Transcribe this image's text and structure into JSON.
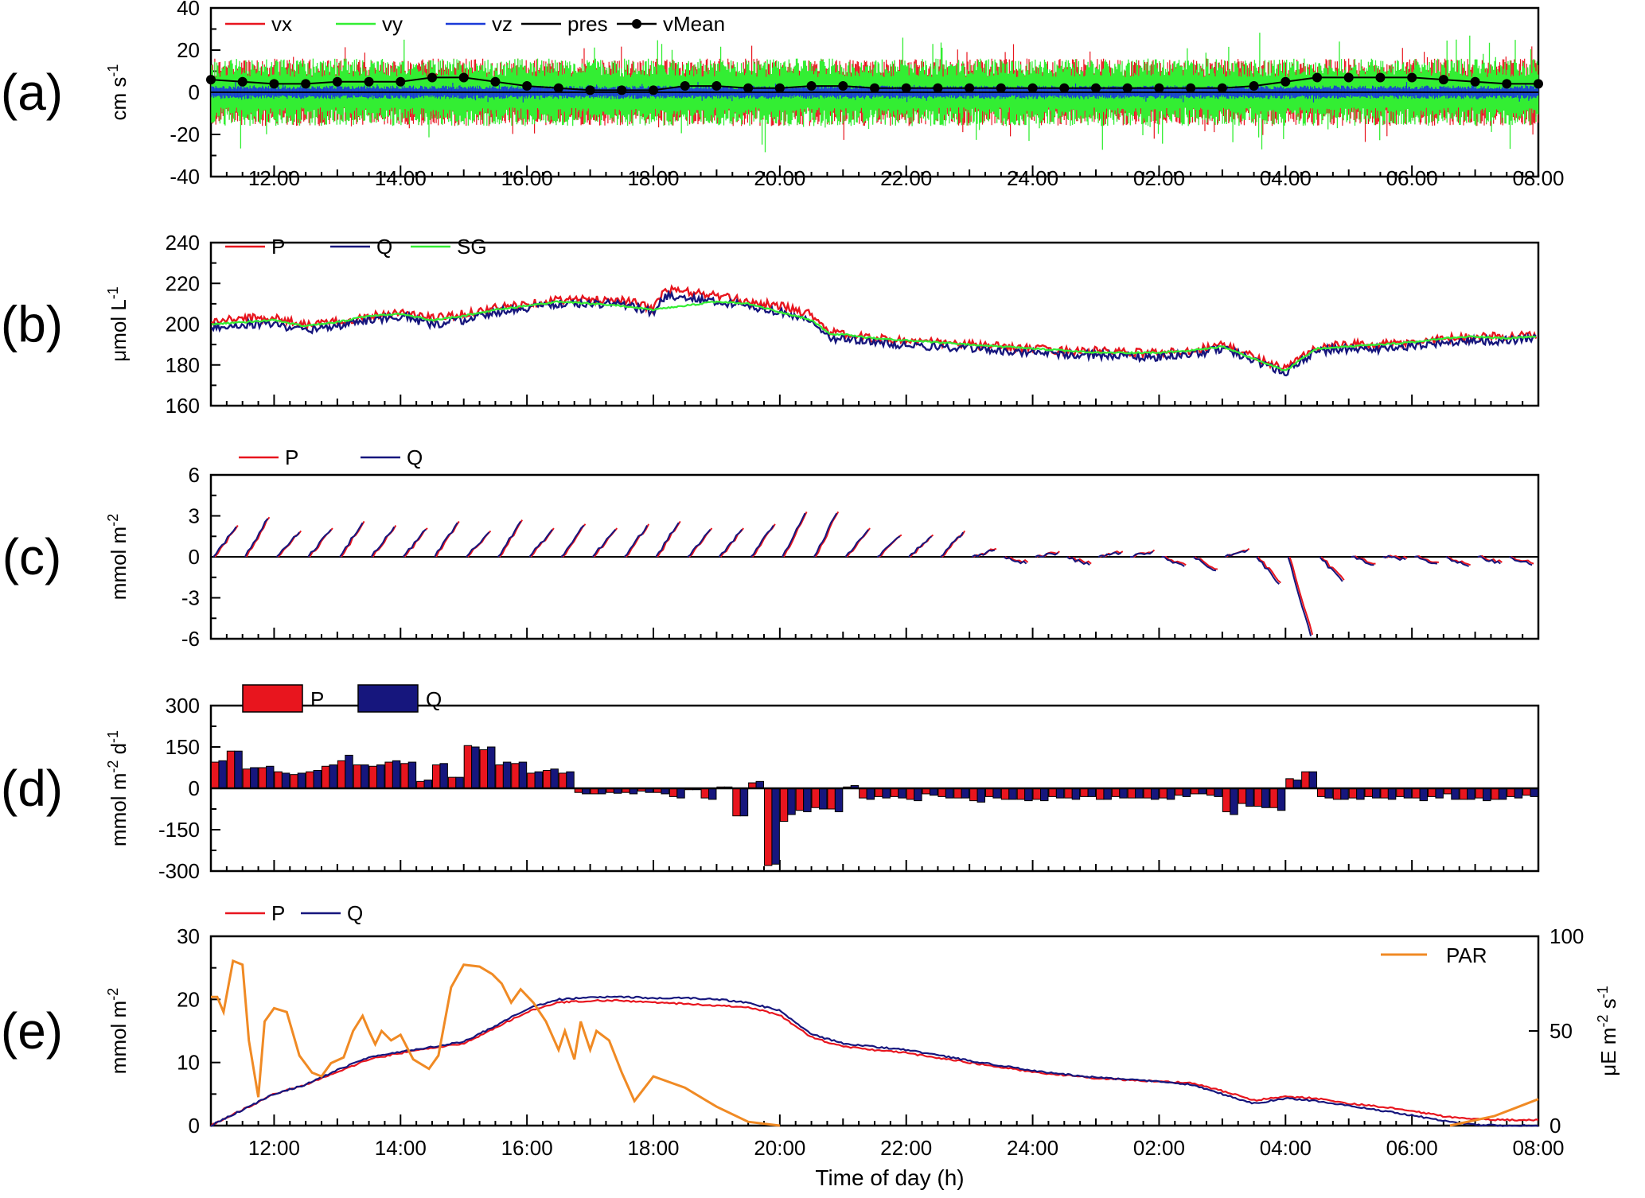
{
  "x_axis": {
    "title": "Time of day (h)",
    "ticks": [
      "12:00",
      "14:00",
      "16:00",
      "18:00",
      "20:00",
      "22:00",
      "24:00",
      "02:00",
      "04:00",
      "06:00",
      "08:00"
    ],
    "range_hours": [
      11,
      32
    ]
  },
  "panels": [
    {
      "label": "(a)",
      "ylabel": "cm s",
      "ylabel_sup": "-1",
      "yticks": [
        "40",
        "20",
        "0",
        "-20",
        "-40"
      ],
      "legend": [
        "vx",
        "vy",
        "vz",
        "pres",
        "vMean"
      ]
    },
    {
      "label": "(b)",
      "ylabel": "μmol L",
      "ylabel_sup": "-1",
      "yticks": [
        "240",
        "220",
        "200",
        "180",
        "160"
      ],
      "legend": [
        "P",
        "Q",
        "SG"
      ]
    },
    {
      "label": "(c)",
      "ylabel": "mmol m",
      "ylabel_sup": "-2",
      "yticks": [
        "6",
        "3",
        "0",
        "-3",
        "-6"
      ],
      "legend": [
        "P",
        "Q"
      ]
    },
    {
      "label": "(d)",
      "ylabel": "mmol m",
      "ylabel_sup": "-2",
      "ylabel_rest": " d",
      "ylabel_sup2": "-1",
      "yticks": [
        "300",
        "150",
        "0",
        "-150",
        "-300"
      ],
      "legend": [
        "P",
        "Q"
      ]
    },
    {
      "label": "(e)",
      "ylabel": "mmol m",
      "ylabel_sup": "-2",
      "yticks": [
        "30",
        "20",
        "10",
        "0"
      ],
      "legend": [
        "P",
        "Q",
        "PAR"
      ],
      "ylabel_right": "μE m",
      "ylabel_right_sup": "-2",
      "ylabel_right_rest": " s",
      "ylabel_right_sup2": "-1",
      "yticks_right": [
        "100",
        "50",
        "0"
      ]
    }
  ],
  "colors": {
    "P": "#e8151e",
    "Q": "#16167d",
    "vx": "#e8151e",
    "vy": "#33ee33",
    "vz": "#1a3ad8",
    "pres": "#000000",
    "vMean": "#000000",
    "SG": "#33ee33",
    "PAR": "#f08a24"
  },
  "chart_data": [
    {
      "panel": "a",
      "type": "line",
      "x_unit": "hour of day (continuing past 24 to 32 = 08:00 next day)",
      "ylim": [
        -40,
        40
      ],
      "series": [
        {
          "name": "vMean",
          "x": [
            11,
            11.5,
            12,
            12.5,
            13,
            13.5,
            14,
            14.5,
            15,
            15.5,
            16,
            16.5,
            17,
            17.5,
            18,
            18.5,
            19,
            19.5,
            20,
            20.5,
            21,
            21.5,
            22,
            22.5,
            23,
            23.5,
            24,
            24.5,
            25,
            25.5,
            26,
            26.5,
            27,
            27.5,
            28,
            28.5,
            29,
            29.5,
            30,
            30.5,
            31,
            31.5,
            32
          ],
          "y": [
            6,
            5,
            4,
            4,
            5,
            5,
            5,
            7,
            7,
            5,
            3,
            2,
            1,
            1,
            1,
            3,
            3,
            2,
            2,
            3,
            3,
            2,
            2,
            2,
            2,
            2,
            2,
            2,
            2,
            2,
            2,
            2,
            2,
            3,
            5,
            7,
            7,
            7,
            7,
            6,
            5,
            4,
            4
          ]
        },
        {
          "name": "vy",
          "envelope": [
            -25,
            25
          ]
        },
        {
          "name": "vx",
          "envelope": [
            -20,
            20
          ]
        },
        {
          "name": "vz",
          "envelope": [
            -4,
            4
          ]
        },
        {
          "name": "pres",
          "envelope": [
            0,
            0
          ]
        }
      ]
    },
    {
      "panel": "b",
      "type": "line",
      "ylim": [
        160,
        240
      ],
      "series": [
        {
          "name": "P",
          "x": [
            11,
            11.5,
            12,
            12.5,
            13,
            13.5,
            14,
            14.5,
            15,
            15.5,
            16,
            16.5,
            17,
            17.5,
            18,
            18.2,
            18.5,
            19,
            19.5,
            20,
            20.5,
            20.8,
            21,
            21.5,
            22,
            22.5,
            23,
            23.5,
            24,
            24.5,
            25,
            25.5,
            26,
            26.5,
            27,
            27.5,
            28,
            28.3,
            28.5,
            29,
            29.5,
            30,
            30.5,
            31,
            31.5,
            32
          ],
          "y": [
            201,
            203,
            203,
            200,
            201,
            204,
            206,
            203,
            205,
            208,
            210,
            212,
            212,
            212,
            208,
            217,
            216,
            214,
            211,
            209,
            205,
            196,
            195,
            193,
            192,
            191,
            190,
            189,
            188,
            187,
            187,
            186,
            186,
            187,
            190,
            184,
            178,
            185,
            189,
            190,
            190,
            191,
            193,
            194,
            194,
            195
          ]
        },
        {
          "name": "Q",
          "x": [
            11,
            11.5,
            12,
            12.5,
            13,
            13.5,
            14,
            14.5,
            15,
            15.5,
            16,
            16.5,
            17,
            17.5,
            18,
            18.2,
            18.5,
            19,
            19.5,
            20,
            20.5,
            20.8,
            21,
            21.5,
            22,
            22.5,
            23,
            23.5,
            24,
            24.5,
            25,
            25.5,
            26,
            26.5,
            27,
            27.5,
            28,
            28.3,
            28.5,
            29,
            29.5,
            30,
            30.5,
            31,
            31.5,
            32
          ],
          "y": [
            198,
            200,
            200,
            197,
            199,
            202,
            204,
            200,
            202,
            206,
            208,
            210,
            210,
            210,
            206,
            214,
            213,
            211,
            209,
            206,
            202,
            193,
            193,
            191,
            190,
            189,
            188,
            187,
            186,
            185,
            185,
            184,
            184,
            185,
            188,
            182,
            176,
            183,
            187,
            188,
            188,
            189,
            191,
            192,
            192,
            193
          ]
        },
        {
          "name": "SG",
          "x": [
            11,
            11.5,
            12,
            12.5,
            13,
            13.5,
            14,
            14.5,
            15,
            15.5,
            16,
            16.5,
            17,
            17.5,
            18,
            18.5,
            19,
            19.5,
            20,
            20.5,
            20.8,
            21,
            21.5,
            22,
            22.5,
            23,
            23.5,
            24,
            24.5,
            25,
            25.5,
            26,
            26.5,
            27,
            27.5,
            28,
            28.3,
            28.5,
            29,
            29.5,
            30,
            30.5,
            31,
            31.5,
            32
          ],
          "y": [
            200,
            201,
            202,
            199,
            201,
            204,
            205,
            202,
            204,
            207,
            209,
            211,
            210,
            209,
            207,
            209,
            211,
            210,
            206,
            202,
            195,
            195,
            193,
            192,
            191,
            190,
            189,
            188,
            187,
            186,
            186,
            186,
            187,
            189,
            183,
            177,
            184,
            188,
            189,
            190,
            191,
            193,
            194,
            193,
            194
          ]
        }
      ]
    },
    {
      "panel": "c",
      "type": "line",
      "ylim": [
        -6,
        6
      ],
      "segments_per_hour": 2,
      "series": [
        {
          "name": "Q",
          "segment_end_values": [
            2.2,
            2.8,
            1.8,
            2.0,
            2.5,
            2.2,
            2.0,
            2.5,
            1.8,
            2.6,
            2.0,
            2.3,
            2.0,
            2.3,
            2.5,
            2.0,
            2.0,
            2.3,
            3.2,
            3.2,
            2.0,
            1.5,
            1.5,
            1.8,
            0.5,
            -0.5,
            0.3,
            -0.6,
            0.3,
            0.4,
            -0.7,
            -1.0,
            0.5,
            -2.0,
            -5.8,
            -1.8,
            -0.6,
            -0.2,
            -0.5,
            -0.7,
            -0.5,
            -0.6,
            -1.2,
            -0.3,
            -0.5,
            -0.4,
            -0.5,
            -0.6,
            -0.4,
            -0.5,
            -0.6,
            -0.6,
            -0.5,
            -0.6,
            -0.6,
            -0.5,
            -0.6,
            -0.5,
            -0.3,
            -1.2,
            -1.8,
            -1.5,
            -1.5,
            0.6,
            1.4,
            -0.4,
            -0.3,
            -0.5,
            -0.4,
            -0.5,
            -0.5,
            -0.6,
            -0.5,
            -0.4,
            -0.6,
            -0.4,
            -0.6,
            -0.5,
            -0.4,
            -0.5,
            -0.4,
            0.2
          ]
        },
        {
          "name": "P",
          "same_as": "Q",
          "offset": 0.1
        }
      ]
    },
    {
      "panel": "d",
      "type": "bar",
      "ylim": [
        -300,
        300
      ],
      "bar_hours_start": 11,
      "bar_spacing_hours": 0.25,
      "series": [
        {
          "name": "P",
          "values": [
            95,
            135,
            70,
            75,
            60,
            50,
            60,
            80,
            100,
            85,
            80,
            95,
            90,
            25,
            85,
            40,
            155,
            140,
            85,
            90,
            55,
            65,
            55,
            -15,
            -20,
            -15,
            -15,
            -10,
            -15,
            -30,
            -5,
            -35,
            5,
            -100,
            20,
            -280,
            -120,
            -80,
            -70,
            -75,
            5,
            -35,
            -30,
            -30,
            -40,
            -20,
            -30,
            -35,
            -45,
            -30,
            -40,
            -40,
            -40,
            -30,
            -35,
            -30,
            -40,
            -30,
            -35,
            -35,
            -35,
            -25,
            -20,
            -25,
            -85,
            -55,
            -65,
            -70,
            35,
            60,
            -30,
            -40,
            -35,
            -30,
            -35,
            -30,
            -35,
            -30,
            -20,
            -40,
            -35,
            -40,
            -30,
            -25,
            5
          ]
        },
        {
          "name": "Q",
          "values": [
            100,
            135,
            75,
            80,
            55,
            55,
            65,
            85,
            120,
            85,
            85,
            100,
            95,
            30,
            90,
            40,
            150,
            150,
            95,
            95,
            60,
            70,
            60,
            -20,
            -20,
            -18,
            -20,
            -15,
            -20,
            -35,
            -5,
            -40,
            5,
            -100,
            25,
            -275,
            -95,
            -85,
            -75,
            -85,
            10,
            -40,
            -35,
            -35,
            -45,
            -25,
            -35,
            -35,
            -50,
            -35,
            -40,
            -45,
            -45,
            -35,
            -40,
            -30,
            -40,
            -35,
            -35,
            -40,
            -40,
            -30,
            -20,
            -30,
            -95,
            -65,
            -70,
            -80,
            30,
            60,
            -35,
            -40,
            -40,
            -35,
            -40,
            -35,
            -45,
            -35,
            -40,
            -40,
            -45,
            -40,
            -35,
            -30,
            10
          ]
        }
      ]
    },
    {
      "panel": "e",
      "type": "line",
      "ylim": [
        0,
        30
      ],
      "y2lim": [
        0,
        100
      ],
      "series": [
        {
          "name": "P",
          "axis": "left",
          "x": [
            11,
            11.5,
            12,
            12.5,
            13,
            13.5,
            14,
            14.5,
            15,
            15.5,
            16,
            16.5,
            17,
            17.5,
            18,
            18.5,
            19,
            19.5,
            20,
            20.5,
            21,
            22,
            23,
            24,
            25,
            26,
            26.5,
            27,
            27.5,
            28,
            28.5,
            29,
            29.5,
            30,
            30.5,
            31,
            31.5,
            32
          ],
          "y": [
            0,
            2.5,
            5,
            6.5,
            8.5,
            10.5,
            11.5,
            12.3,
            13,
            15.5,
            18,
            19.5,
            19.8,
            19.8,
            19.5,
            19.3,
            19,
            18.8,
            17.5,
            14,
            12.5,
            11.5,
            10,
            8.5,
            7.5,
            7,
            6.8,
            5.5,
            4,
            4.6,
            4.3,
            3.5,
            3,
            2.3,
            1.5,
            1,
            0.9,
            0.9
          ]
        },
        {
          "name": "Q",
          "axis": "left",
          "x": [
            11,
            11.5,
            12,
            12.5,
            13,
            13.5,
            14,
            14.5,
            15,
            15.5,
            16,
            16.5,
            17,
            17.5,
            18,
            18.5,
            19,
            19.5,
            20,
            20.5,
            21,
            22,
            23,
            24,
            25,
            26,
            26.5,
            27,
            27.5,
            28,
            28.5,
            29,
            29.5,
            30,
            30.5,
            31,
            31.5,
            32
          ],
          "y": [
            0,
            2.5,
            5,
            6.5,
            8.8,
            10.8,
            11.7,
            12.5,
            13.3,
            15.8,
            18.5,
            20,
            20.3,
            20.4,
            20.2,
            20.2,
            20,
            19.5,
            18.2,
            14.5,
            13,
            12,
            10.3,
            8.7,
            7.6,
            7,
            6.5,
            5,
            3.5,
            4.3,
            3.9,
            3.1,
            2.4,
            1.6,
            0.8,
            0.1,
            0,
            0
          ]
        },
        {
          "name": "PAR",
          "axis": "right",
          "x": [
            11,
            11.1,
            11.2,
            11.35,
            11.5,
            11.6,
            11.75,
            11.85,
            12,
            12.2,
            12.4,
            12.6,
            12.75,
            12.9,
            13.1,
            13.25,
            13.4,
            13.5,
            13.6,
            13.7,
            13.85,
            14,
            14.2,
            14.45,
            14.6,
            14.8,
            15.0,
            15.25,
            15.45,
            15.6,
            15.75,
            15.9,
            16.1,
            16.3,
            16.5,
            16.6,
            16.75,
            16.85,
            17.0,
            17.1,
            17.3,
            17.5,
            17.7,
            18.0,
            18.5,
            19.0,
            19.5,
            20.0
          ],
          "y": [
            68,
            68,
            60,
            87,
            85,
            45,
            15,
            55,
            62,
            60,
            37,
            28,
            26,
            33,
            36,
            50,
            58,
            50,
            43,
            50,
            45,
            48,
            35,
            30,
            37,
            73,
            85,
            84,
            80,
            75,
            65,
            72,
            65,
            55,
            40,
            50,
            35,
            55,
            40,
            50,
            45,
            28,
            13,
            26,
            20,
            10,
            2,
            0
          ]
        }
      ]
    }
  ]
}
